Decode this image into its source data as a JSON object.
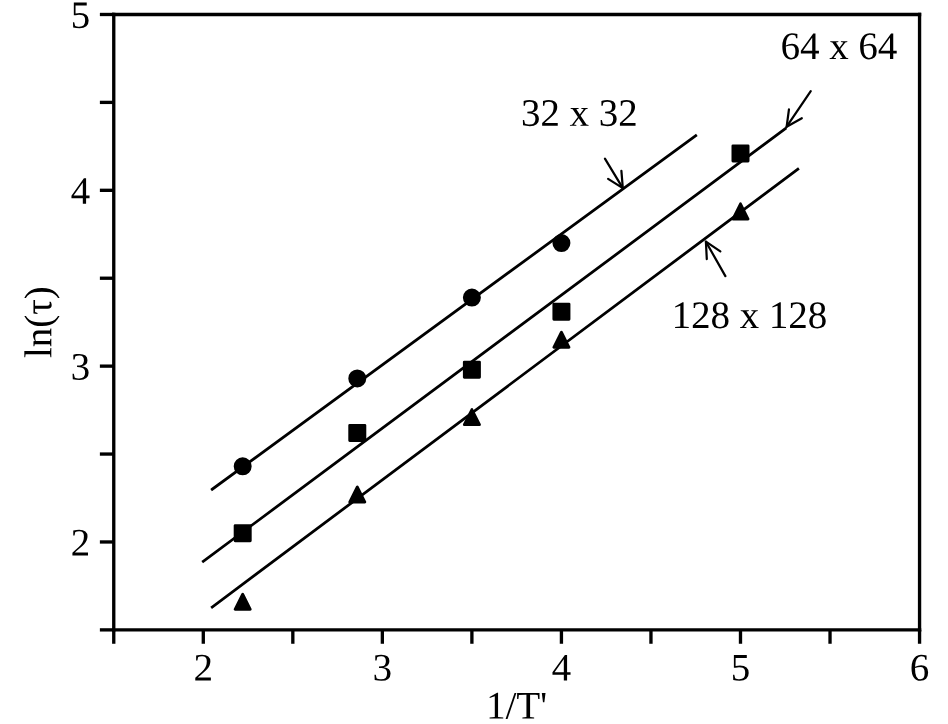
{
  "chart_data": {
    "type": "scatter",
    "xlabel": "1/T'",
    "ylabel": "ln(τ)",
    "xlim": [
      1.5,
      6
    ],
    "ylim": [
      1.5,
      5
    ],
    "xticks": [
      {
        "value": 1.5,
        "label": null
      },
      2,
      {
        "value": 2.5,
        "label": null
      },
      3,
      {
        "value": 3.5,
        "label": null
      },
      4,
      {
        "value": 4.5,
        "label": null
      },
      5,
      {
        "value": 5.5,
        "label": null
      },
      6
    ],
    "yticks": [
      {
        "value": 1.5,
        "label": null
      },
      2,
      {
        "value": 2.5,
        "label": null
      },
      3,
      {
        "value": 3.5,
        "label": null
      },
      4,
      {
        "value": 4.5,
        "label": null
      },
      5
    ],
    "grid": false,
    "legend": false,
    "series": [
      {
        "marker": "circle",
        "color": "#000000",
        "x": [
          2.22,
          2.86,
          3.5,
          4.0
        ],
        "values": [
          2.43,
          2.93,
          3.39,
          3.7
        ]
      },
      {
        "marker": "square",
        "color": "#000000",
        "x": [
          2.22,
          2.86,
          3.5,
          4.0,
          5.0
        ],
        "values": [
          2.05,
          2.62,
          2.98,
          3.31,
          4.21
        ]
      },
      {
        "marker": "triangle",
        "color": "#000000",
        "x": [
          2.22,
          2.86,
          3.5,
          4.0,
          5.0
        ],
        "values": [
          1.66,
          2.27,
          2.71,
          3.15,
          3.88
        ]
      },
      {
        "type": "line",
        "line_style": "solid",
        "color": "#000000",
        "x": [
          2.05,
          4.75
        ],
        "values": [
          2.3,
          4.31
        ]
      },
      {
        "type": "line",
        "line_style": "solid",
        "color": "#000000",
        "x": [
          2.0,
          5.25
        ],
        "values": [
          1.89,
          4.35
        ]
      },
      {
        "type": "line",
        "line_style": "solid",
        "color": "#000000",
        "x": [
          2.05,
          5.32
        ],
        "values": [
          1.63,
          4.12
        ]
      }
    ],
    "annotations": [
      {
        "text": "32 x 32",
        "x": 4.35,
        "y": 4.0
      },
      {
        "text": "64 x 64",
        "x": 5.25,
        "y": 4.35
      },
      {
        "text": "128 x 128",
        "x": 4.8,
        "y": 3.72
      }
    ]
  }
}
